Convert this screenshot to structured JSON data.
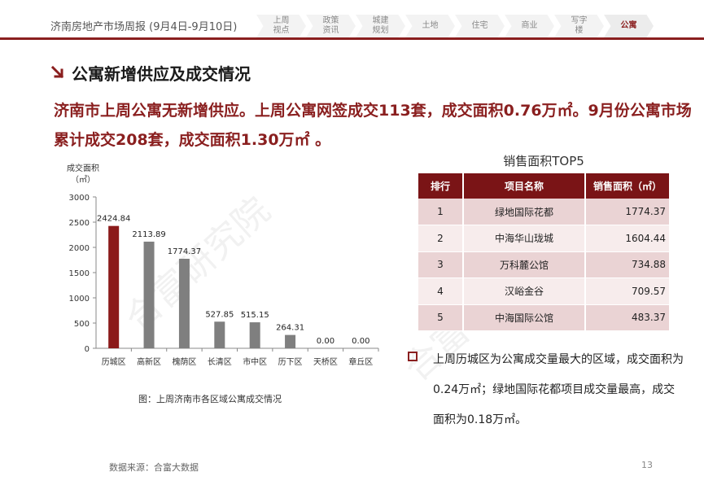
{
  "header": {
    "title": "济南房地产市场周报 (9月4日-9月10日)",
    "tabs": [
      {
        "label": "上周\n视点",
        "active": false
      },
      {
        "label": "政策\n资讯",
        "active": false
      },
      {
        "label": "城建\n规划",
        "active": false
      },
      {
        "label": "土地",
        "active": false
      },
      {
        "label": "住宅",
        "active": false
      },
      {
        "label": "商业",
        "active": false
      },
      {
        "label": "写字\n楼",
        "active": false
      },
      {
        "label": "公寓",
        "active": true
      }
    ]
  },
  "section": {
    "title": "公寓新增供应及成交情况",
    "summary": "济南市上周公寓无新增供应。上周公寓网签成交113套，成交面积0.76万㎡。9月份公寓市场累计成交208套，成交面积1.30万㎡ 。"
  },
  "chart_data": {
    "type": "bar",
    "ylabel": "成交面积\n（㎡）",
    "categories": [
      "历城区",
      "高新区",
      "槐荫区",
      "长清区",
      "市中区",
      "历下区",
      "天桥区",
      "章丘区"
    ],
    "values": [
      2424.84,
      2113.89,
      1774.37,
      527.85,
      515.15,
      264.31,
      0.0,
      0.0
    ],
    "value_labels": [
      "2424.84",
      "2113.89",
      "1774.37",
      "527.85",
      "515.15",
      "264.31",
      "0.00",
      "0.00"
    ],
    "ylim": [
      0,
      3000
    ],
    "yticks": [
      "0",
      "500",
      "1000",
      "1500",
      "2000",
      "2500",
      "3000"
    ],
    "colors": [
      "#8b1a1a",
      "#7f7f7f"
    ],
    "caption": "图：上周济南市各区域公寓成交情况"
  },
  "top5": {
    "title": "销售面积TOP5",
    "headers": [
      "排行",
      "项目名称",
      "销售面积（㎡）"
    ],
    "rows": [
      [
        "1",
        "绿地国际花都",
        "1774.37"
      ],
      [
        "2",
        "中海华山珑城",
        "1604.44"
      ],
      [
        "3",
        "万科麓公馆",
        "734.88"
      ],
      [
        "4",
        "汉峪金谷",
        "709.57"
      ],
      [
        "5",
        "中海国际公馆",
        "483.37"
      ]
    ]
  },
  "note": "上周历城区为公寓成交量最大的区域，成交面积为0.24万㎡；绿地国际花都项目成交量最高，成交面积为0.18万㎡。",
  "footer": {
    "source": "数据来源：合富大数据",
    "page": "13"
  },
  "watermark": {
    "text": "合富研究院",
    "partial": "合富"
  }
}
